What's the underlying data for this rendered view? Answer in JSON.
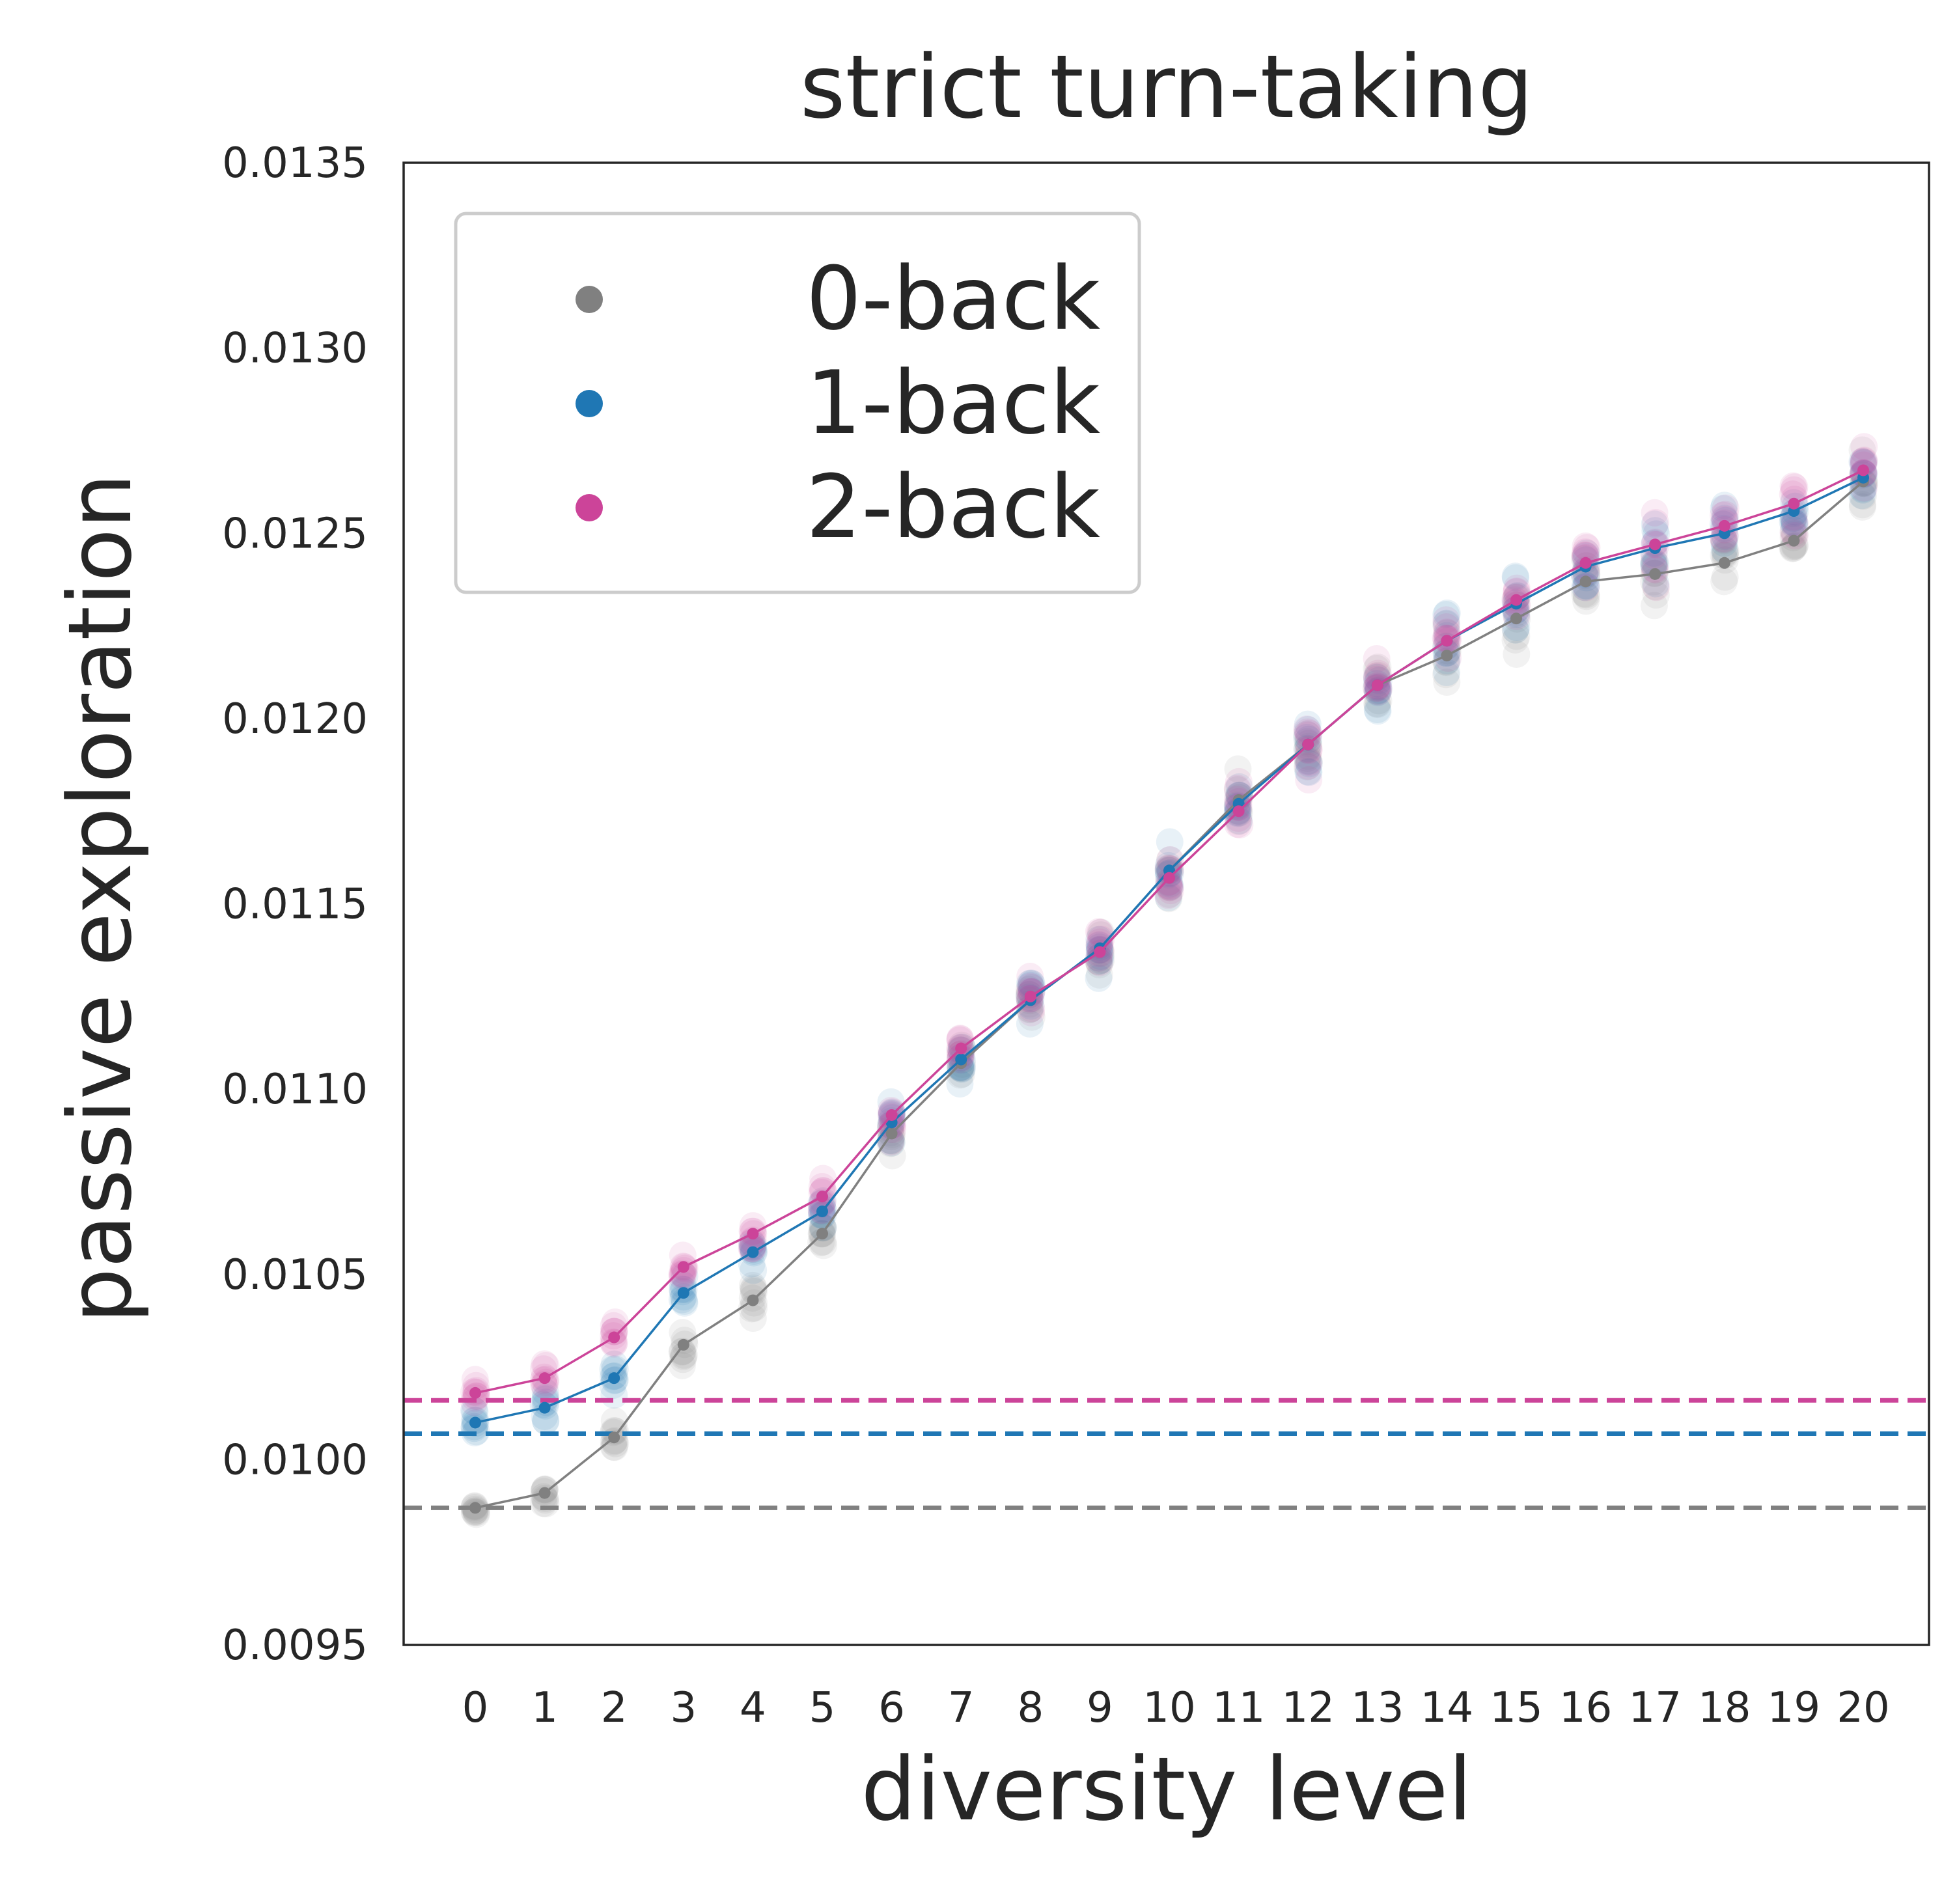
{
  "chart_data": {
    "type": "line",
    "title": "strict turn-taking",
    "xlabel": "diversity level",
    "ylabel": "passive exploration",
    "categories": [
      "0",
      "1",
      "2",
      "3",
      "4",
      "5",
      "6",
      "7",
      "8",
      "9",
      "10",
      "11",
      "12",
      "13",
      "14",
      "15",
      "16",
      "17",
      "18",
      "19",
      "20"
    ],
    "ylim": [
      0.0095,
      0.0135
    ],
    "yticks": [
      "0.0095",
      "0.0100",
      "0.0105",
      "0.0110",
      "0.0115",
      "0.0120",
      "0.0125",
      "0.0130",
      "0.0135"
    ],
    "grid": false,
    "legend_position": "top-left",
    "series": [
      {
        "name": "0-back",
        "color": "#808080",
        "baseline": 0.00987,
        "values": [
          0.00987,
          0.00991,
          0.01006,
          0.01031,
          0.01043,
          0.01061,
          0.01088,
          0.01107,
          0.01124,
          0.01138,
          0.01159,
          0.01178,
          0.01193,
          0.01209,
          0.01217,
          0.01227,
          0.01237,
          0.01239,
          0.01242,
          0.01248,
          0.01264
        ]
      },
      {
        "name": "1-back",
        "color": "#1f77b4",
        "baseline": 0.01007,
        "values": [
          0.0101,
          0.01014,
          0.01022,
          0.01045,
          0.01056,
          0.01067,
          0.01091,
          0.01108,
          0.01124,
          0.01138,
          0.01159,
          0.01177,
          0.01193,
          0.01209,
          0.01221,
          0.01231,
          0.01241,
          0.01246,
          0.0125,
          0.01256,
          0.01265
        ]
      },
      {
        "name": "2-back",
        "color": "#cc4499",
        "baseline": 0.01016,
        "values": [
          0.01018,
          0.01022,
          0.01033,
          0.01052,
          0.01061,
          0.01071,
          0.01093,
          0.01111,
          0.01125,
          0.01137,
          0.01157,
          0.01175,
          0.01193,
          0.01209,
          0.01221,
          0.01232,
          0.01242,
          0.01247,
          0.01252,
          0.01258,
          0.01267
        ]
      }
    ]
  }
}
